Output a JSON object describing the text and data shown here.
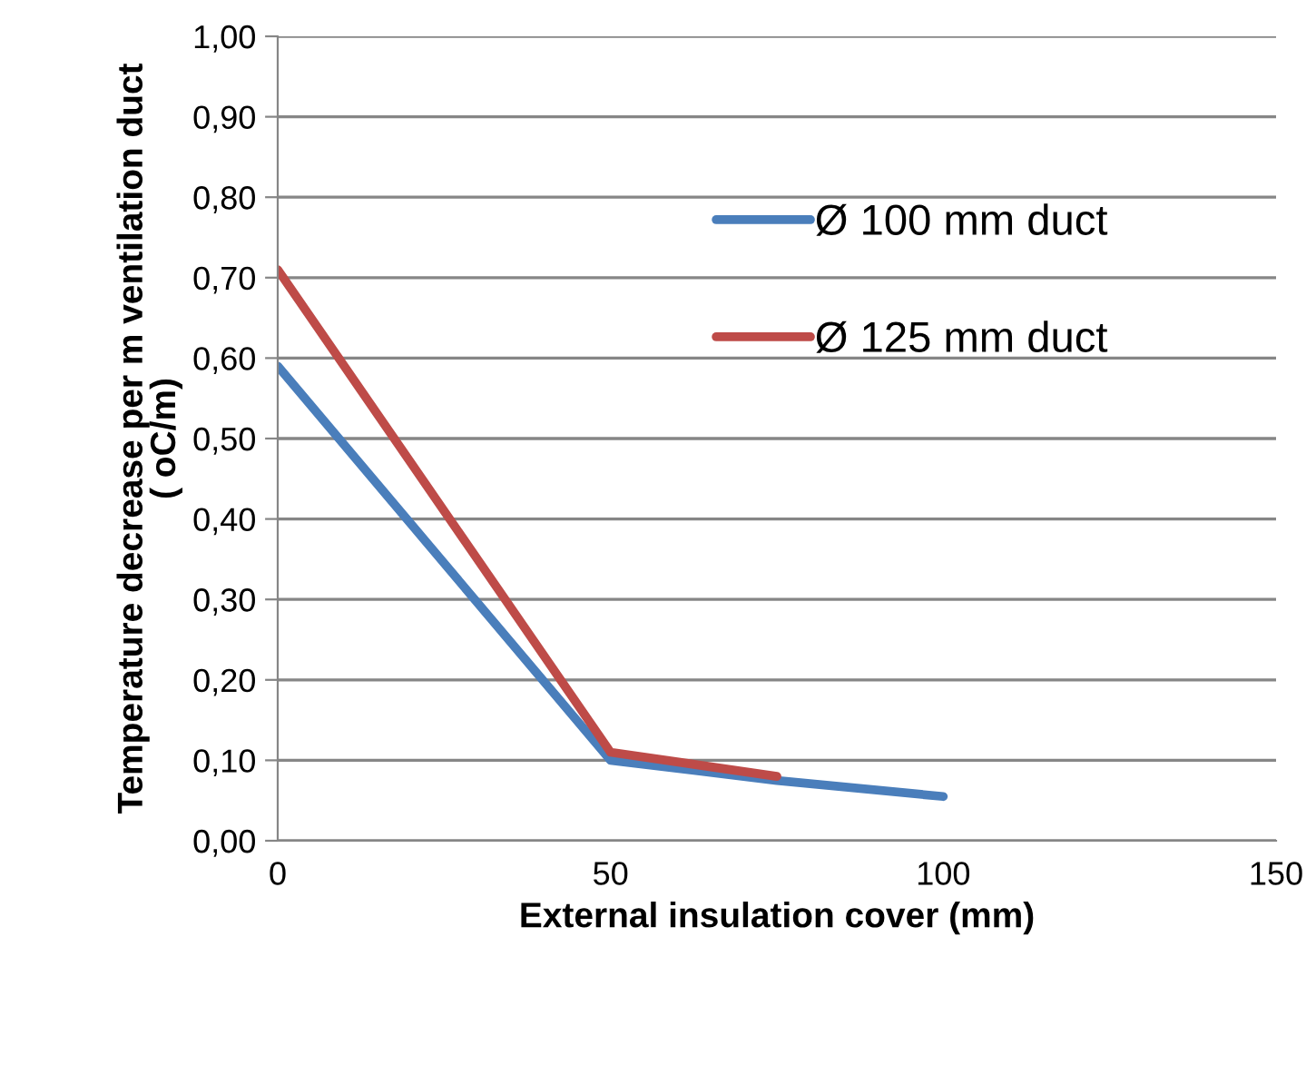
{
  "chart_data": {
    "type": "line",
    "xlabel": "External insulation cover (mm)",
    "ylabel": "Temperature decrease per m ventilation duct\n( oC/m)",
    "x": [
      0,
      50,
      75,
      100
    ],
    "series": [
      {
        "name": "Ø 100 mm duct",
        "color": "#4a7ebb",
        "values": [
          0.59,
          0.1,
          0.075,
          0.055
        ]
      },
      {
        "name": "Ø 125 mm duct",
        "color": "#be4b48",
        "values": [
          0.71,
          0.11,
          0.08,
          null
        ]
      }
    ],
    "xlim": [
      0,
      150
    ],
    "xticks": [
      0,
      50,
      100,
      150
    ],
    "ylim": [
      0,
      1
    ],
    "yticks": [
      {
        "value": 0,
        "label": "0,00"
      },
      {
        "value": 0.1,
        "label": "0,10"
      },
      {
        "value": 0.2,
        "label": "0,20"
      },
      {
        "value": 0.3,
        "label": "0,30"
      },
      {
        "value": 0.4,
        "label": "0,40"
      },
      {
        "value": 0.5,
        "label": "0,50"
      },
      {
        "value": 0.6,
        "label": "0,60"
      },
      {
        "value": 0.7,
        "label": "0,70"
      },
      {
        "value": 0.8,
        "label": "0,80"
      },
      {
        "value": 0.9,
        "label": "0,90"
      },
      {
        "value": 1,
        "label": "1,00"
      }
    ],
    "grid": "y",
    "legend": "top right",
    "marker": "none",
    "line_style": "solid"
  }
}
